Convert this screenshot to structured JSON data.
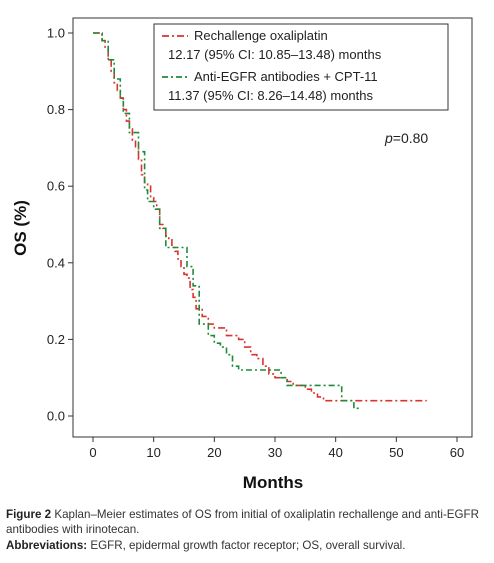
{
  "chart_data": {
    "type": "line",
    "title": "",
    "xlabel": "Months",
    "ylabel": "OS (%)",
    "xlim": [
      0,
      60
    ],
    "ylim": [
      0,
      1.0
    ],
    "xticks": [
      0,
      10,
      20,
      30,
      40,
      50,
      60
    ],
    "yticks": [
      "0.0",
      "0.2",
      "0.4",
      "0.6",
      "0.8",
      "1.0"
    ],
    "ytick_values": [
      0,
      0.2,
      0.4,
      0.6,
      0.8,
      1.0
    ],
    "grid": false,
    "legend_position": "top-right",
    "annotation": {
      "text": "p=0.80",
      "p_label": "p",
      "p_value": "=0.80"
    },
    "series": [
      {
        "name": "Rechallenge oxaliplatin",
        "detail": "12.17 (95% CI: 10.85–13.48) months",
        "color": "#d9342b",
        "x": [
          0,
          1.5,
          2,
          2.5,
          3,
          3.5,
          4,
          4.5,
          5,
          5.5,
          6,
          6.5,
          7,
          7.5,
          8,
          8.5,
          9,
          9.5,
          10,
          10.5,
          11,
          11.5,
          12,
          12.5,
          13,
          13.5,
          14,
          14.5,
          15,
          15.5,
          16,
          16.5,
          17,
          18,
          19,
          20,
          21,
          22,
          23,
          24,
          25,
          26,
          27,
          28,
          29,
          30,
          31,
          32,
          33,
          34,
          35,
          36,
          37,
          38,
          39,
          40,
          55
        ],
        "y": [
          1.0,
          0.98,
          0.96,
          0.93,
          0.9,
          0.87,
          0.85,
          0.83,
          0.8,
          0.77,
          0.75,
          0.72,
          0.7,
          0.67,
          0.63,
          0.61,
          0.6,
          0.57,
          0.56,
          0.54,
          0.5,
          0.49,
          0.47,
          0.46,
          0.44,
          0.43,
          0.41,
          0.39,
          0.37,
          0.36,
          0.33,
          0.31,
          0.28,
          0.26,
          0.24,
          0.23,
          0.23,
          0.21,
          0.21,
          0.2,
          0.18,
          0.16,
          0.15,
          0.13,
          0.11,
          0.1,
          0.1,
          0.09,
          0.08,
          0.08,
          0.07,
          0.06,
          0.05,
          0.04,
          0.04,
          0.04,
          0.04
        ]
      },
      {
        "name": "Anti-EGFR antibodies + CPT-11",
        "detail": "11.37 (95% CI: 8.26–14.48) months",
        "color": "#1f8a3a",
        "x": [
          0,
          1.5,
          2.5,
          3.5,
          4.5,
          5,
          6,
          7.5,
          8.5,
          9,
          10,
          11,
          12,
          13,
          15,
          15.5,
          16.5,
          17.5,
          19,
          20,
          21,
          22,
          23,
          24,
          25,
          27,
          29,
          30,
          31,
          32,
          33,
          34,
          36,
          38,
          41,
          42.5,
          43,
          44
        ],
        "y": [
          1.0,
          0.98,
          0.93,
          0.88,
          0.83,
          0.79,
          0.74,
          0.69,
          0.59,
          0.56,
          0.54,
          0.49,
          0.44,
          0.44,
          0.44,
          0.39,
          0.34,
          0.24,
          0.21,
          0.19,
          0.18,
          0.16,
          0.13,
          0.12,
          0.12,
          0.12,
          0.12,
          0.12,
          0.1,
          0.08,
          0.08,
          0.08,
          0.08,
          0.08,
          0.04,
          0.04,
          0.02,
          0.02
        ]
      }
    ]
  },
  "caption": {
    "figure_label": "Figure 2",
    "figure_text": "Kaplan–Meier estimates of OS from initial of oxaliplatin rechallenge and anti-EGFR antibodies with irinotecan.",
    "abbrev_label": "Abbreviations:",
    "abbrev_text": "EGFR, epidermal growth factor receptor; OS, overall survival."
  }
}
